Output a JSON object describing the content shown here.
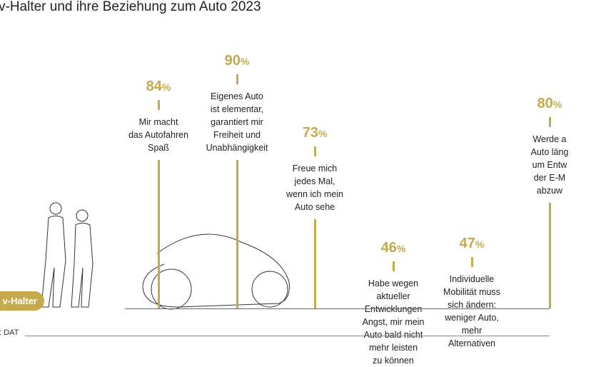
{
  "title": "v-Halter und ihre Beziehung zum Auto 2023",
  "badge": "v-Halter",
  "source": ": DAT",
  "colors": {
    "accent": "#c4a94f"
  },
  "chart_data": {
    "type": "lollipop",
    "unit": "%",
    "items": [
      {
        "value": 84,
        "label": "Mir macht\ndas Autofahren\nSpaß"
      },
      {
        "value": 90,
        "label": "Eigenes Auto\nist elementar,\ngarantiert mir\nFreiheit und\nUnabhängigkeit"
      },
      {
        "value": 73,
        "label": "Freue mich\njedes Mal,\nwenn ich mein\nAuto sehe"
      },
      {
        "value": 46,
        "label": "Habe wegen\naktueller\nEntwicklungen\nAngst, mir mein\nAuto bald nicht\nmehr leisten\nzu können"
      },
      {
        "value": 47,
        "label": "Individuelle\nMobilität muss\nsich ändern:\nweniger Auto,\nmehr\nAlternativen"
      },
      {
        "value": 80,
        "label": "Werde a\nAuto läng\num Entw\nder E-M\nabzuw"
      }
    ]
  }
}
